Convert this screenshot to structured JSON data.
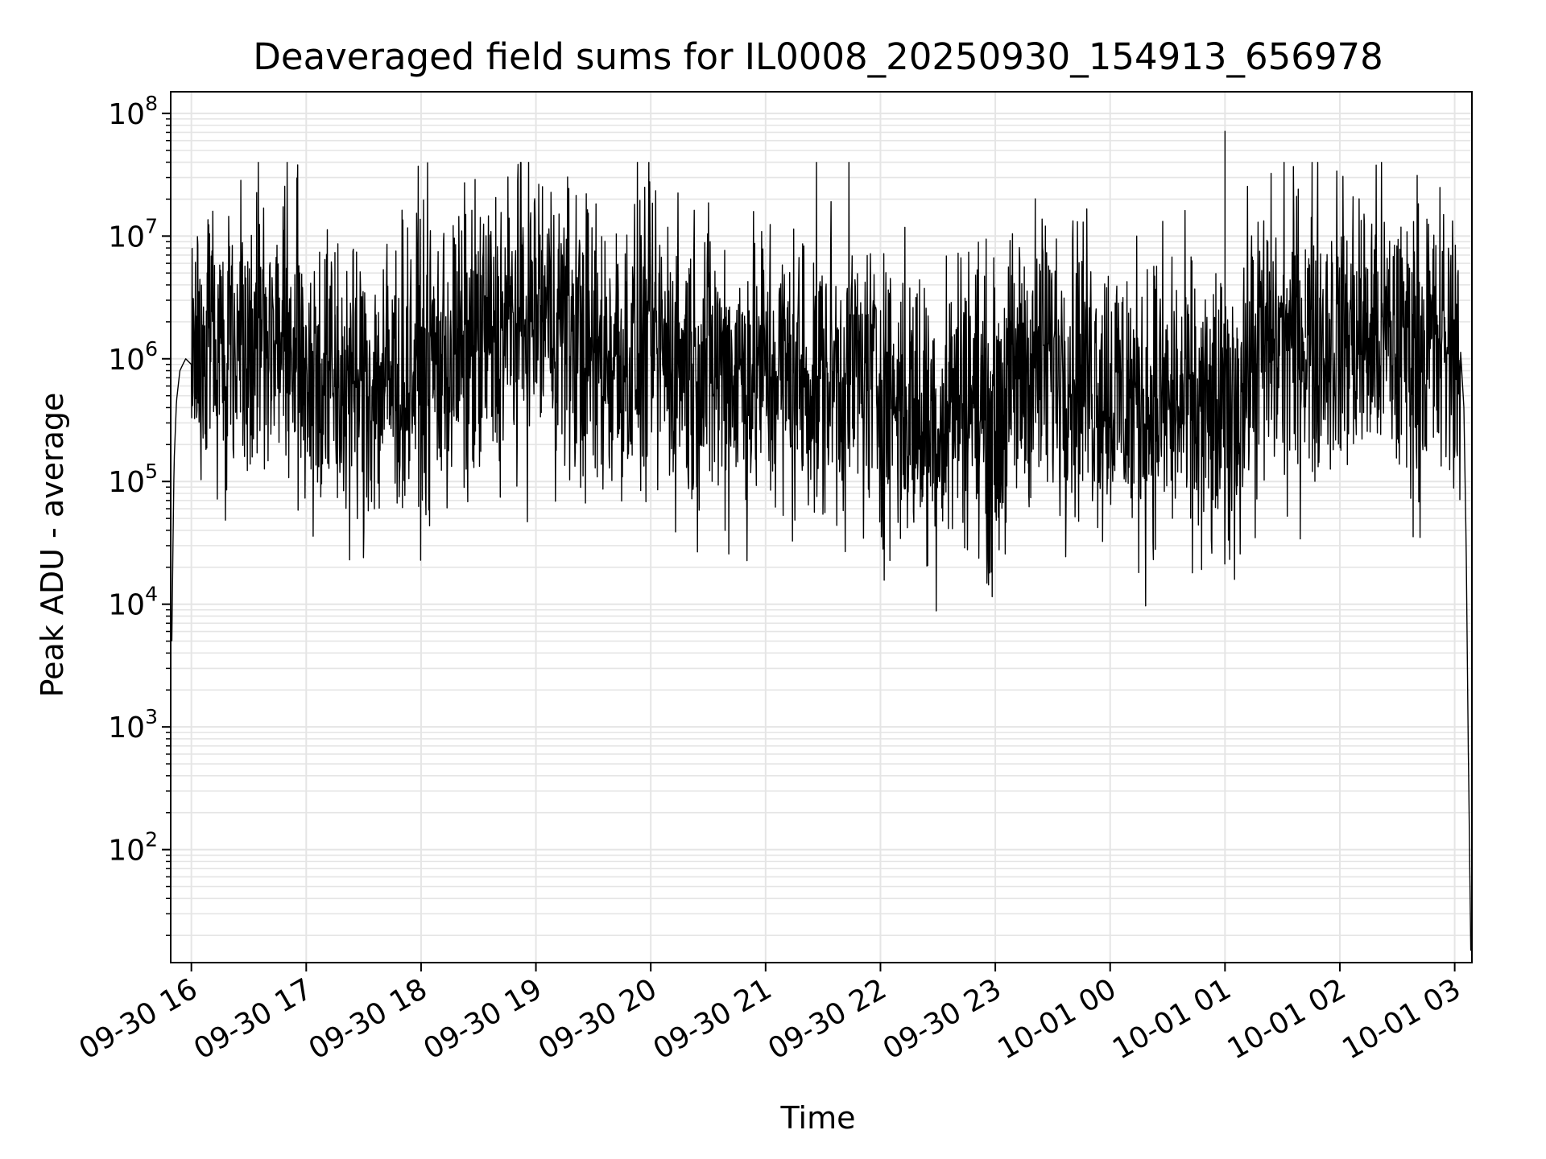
{
  "chart_data": {
    "type": "line",
    "title": "Deaveraged field sums for IL0008_20250930_154913_656978",
    "xlabel": "Time",
    "ylabel": "Peak ADU - average",
    "yscale": "log",
    "grid": true,
    "grid_minor": true,
    "colors": {
      "line": "#000000",
      "grid": "#e5e5e5",
      "background": "#ffffff",
      "axes": "#000000"
    },
    "xlim_hours_from_0930_1600": [
      -0.18,
      11.15
    ],
    "ylim": [
      12,
      150000000
    ],
    "x_ticks": [
      {
        "hours": 0,
        "label": "09-30 16"
      },
      {
        "hours": 1,
        "label": "09-30 17"
      },
      {
        "hours": 2,
        "label": "09-30 18"
      },
      {
        "hours": 3,
        "label": "09-30 19"
      },
      {
        "hours": 4,
        "label": "09-30 20"
      },
      {
        "hours": 5,
        "label": "09-30 21"
      },
      {
        "hours": 6,
        "label": "09-30 22"
      },
      {
        "hours": 7,
        "label": "09-30 23"
      },
      {
        "hours": 8,
        "label": "10-01 00"
      },
      {
        "hours": 9,
        "label": "10-01 01"
      },
      {
        "hours": 10,
        "label": "10-01 02"
      },
      {
        "hours": 11,
        "label": "10-01 03"
      }
    ],
    "y_ticks": [
      {
        "value": 100,
        "base": "10",
        "exp": "2"
      },
      {
        "value": 1000,
        "base": "10",
        "exp": "3"
      },
      {
        "value": 10000,
        "base": "10",
        "exp": "4"
      },
      {
        "value": 100000,
        "base": "10",
        "exp": "5"
      },
      {
        "value": 1000000,
        "base": "10",
        "exp": "6"
      },
      {
        "value": 10000000,
        "base": "10",
        "exp": "7"
      },
      {
        "value": 100000000,
        "base": "10",
        "exp": "8"
      }
    ],
    "series": [
      {
        "name": "Deaveraged field sum",
        "x_hours": [
          -0.17,
          -0.16,
          -0.15,
          -0.13,
          -0.1,
          -0.05,
          0.0,
          0.25,
          0.5,
          0.75,
          1.0,
          1.25,
          1.5,
          1.75,
          2.0,
          2.25,
          2.5,
          2.75,
          3.0,
          3.25,
          3.5,
          3.75,
          4.0,
          4.25,
          4.5,
          4.75,
          5.0,
          5.25,
          5.5,
          5.75,
          6.0,
          6.25,
          6.5,
          6.75,
          6.95,
          7.0,
          7.05,
          7.25,
          7.5,
          7.75,
          8.0,
          8.25,
          8.5,
          8.75,
          9.0,
          9.01,
          9.02,
          9.25,
          9.5,
          9.75,
          10.0,
          10.25,
          10.5,
          10.75,
          10.9,
          11.0,
          11.05,
          11.08,
          11.1,
          11.12,
          11.14
        ],
        "y_baseline": [
          5000,
          30000,
          150000,
          450000,
          800000,
          1000000,
          900000,
          1600000,
          1800000,
          1700000,
          900000,
          600000,
          600000,
          700000,
          900000,
          1000000,
          1300000,
          1800000,
          2500000,
          2000000,
          1000000,
          1100000,
          1300000,
          1000000,
          900000,
          800000,
          800000,
          700000,
          700000,
          800000,
          600000,
          400000,
          300000,
          700000,
          300000,
          250000,
          400000,
          900000,
          1000000,
          900000,
          550000,
          450000,
          450000,
          350000,
          300000,
          300000,
          300000,
          1100000,
          1400000,
          1500000,
          1600000,
          1500000,
          1300000,
          1300000,
          1200000,
          1300000,
          1200000,
          400000,
          30000,
          500,
          15
        ],
        "spread_decades": 0.45,
        "spikes": [
          {
            "x_hours": 9.0,
            "value": 72000000
          },
          {
            "x_hours": 3.7,
            "value": 10500000
          },
          {
            "x_hours": 1.25,
            "value": 7400000
          },
          {
            "x_hours": 3.2,
            "value": 8700000
          },
          {
            "x_hours": 9.7,
            "value": 7800000
          },
          {
            "x_hours": 10.3,
            "value": 7800000
          }
        ]
      }
    ]
  }
}
